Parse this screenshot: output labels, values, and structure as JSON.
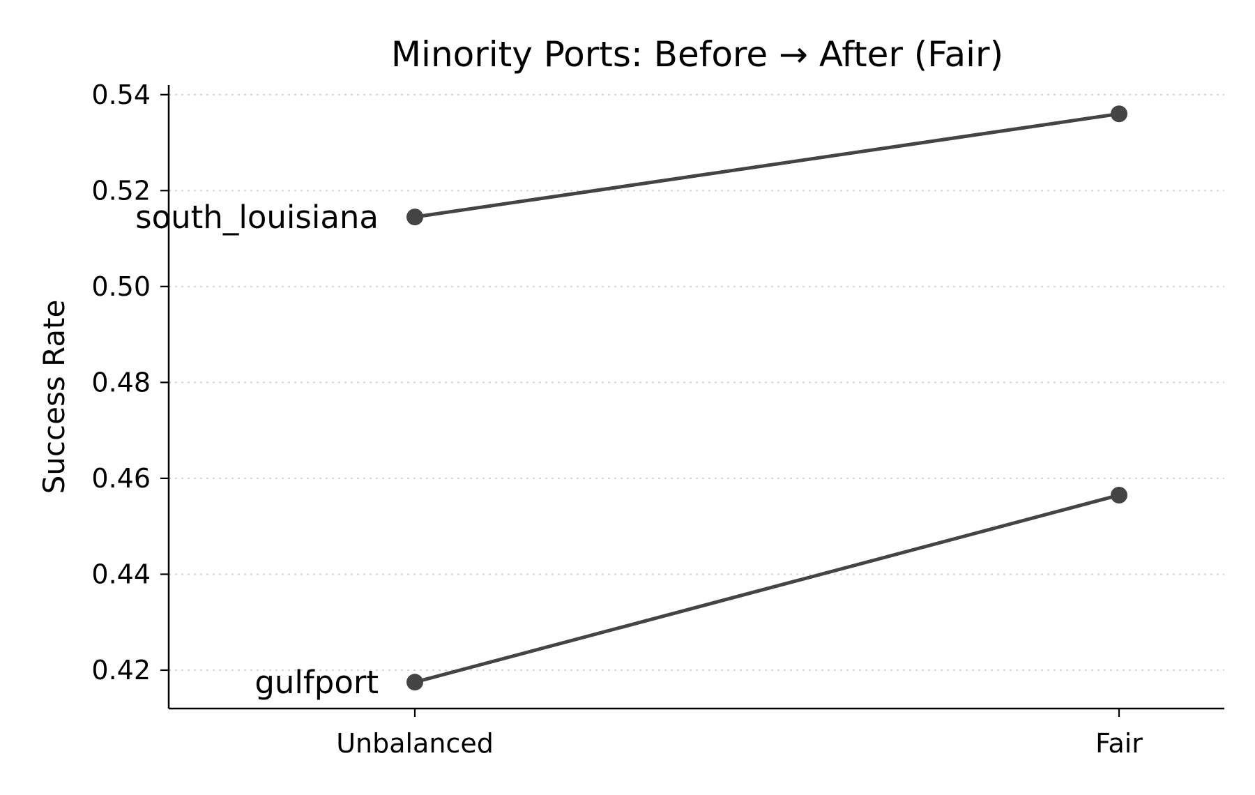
{
  "chart_data": {
    "type": "line",
    "title": "Minority Ports: Before → After (Fair)",
    "xlabel": "",
    "ylabel": "Success Rate",
    "categories": [
      "Unbalanced",
      "Fair"
    ],
    "ylim": [
      0.412,
      0.542
    ],
    "yticks": [
      0.42,
      0.44,
      0.46,
      0.48,
      0.5,
      0.52,
      0.54
    ],
    "ytick_labels": [
      "0.42",
      "0.44",
      "0.46",
      "0.48",
      "0.50",
      "0.52",
      "0.54"
    ],
    "grid": "horizontal dotted",
    "series": [
      {
        "name": "south_louisiana",
        "values": [
          0.5145,
          0.536
        ]
      },
      {
        "name": "gulfport",
        "values": [
          0.4175,
          0.4565
        ]
      }
    ],
    "colors": {
      "line": "#444444",
      "grid": "#d4d4d4",
      "axis": "#000000"
    }
  }
}
